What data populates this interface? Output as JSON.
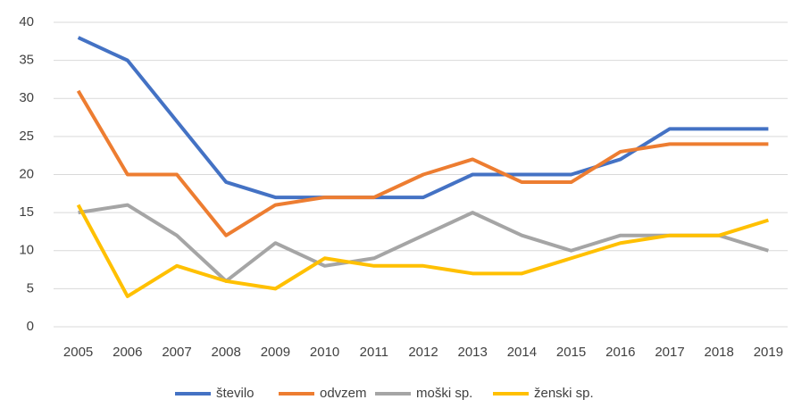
{
  "chart_data": {
    "type": "line",
    "categories": [
      "2005",
      "2006",
      "2007",
      "2008",
      "2009",
      "2010",
      "2011",
      "2012",
      "2013",
      "2014",
      "2015",
      "2016",
      "2017",
      "2018",
      "2019"
    ],
    "series": [
      {
        "name": "število",
        "color": "#4472c4",
        "values": [
          38,
          35,
          27,
          19,
          17,
          17,
          17,
          17,
          20,
          20,
          20,
          22,
          26,
          26,
          26
        ]
      },
      {
        "name": "odvzem",
        "color": "#ed7d31",
        "values": [
          31,
          20,
          20,
          12,
          16,
          17,
          17,
          20,
          22,
          19,
          19,
          23,
          24,
          24,
          24
        ]
      },
      {
        "name": "moški sp.",
        "color": "#a5a5a5",
        "values": [
          15,
          16,
          12,
          6,
          11,
          8,
          9,
          12,
          15,
          12,
          10,
          12,
          12,
          12,
          10
        ]
      },
      {
        "name": "ženski sp.",
        "color": "#ffc000",
        "values": [
          16,
          4,
          8,
          6,
          5,
          9,
          8,
          8,
          7,
          7,
          9,
          11,
          12,
          12,
          14
        ]
      }
    ],
    "ylim": [
      0,
      40
    ],
    "yticks": [
      0,
      5,
      10,
      15,
      20,
      25,
      30,
      35,
      40
    ],
    "grid": true,
    "legend": "bottom"
  }
}
